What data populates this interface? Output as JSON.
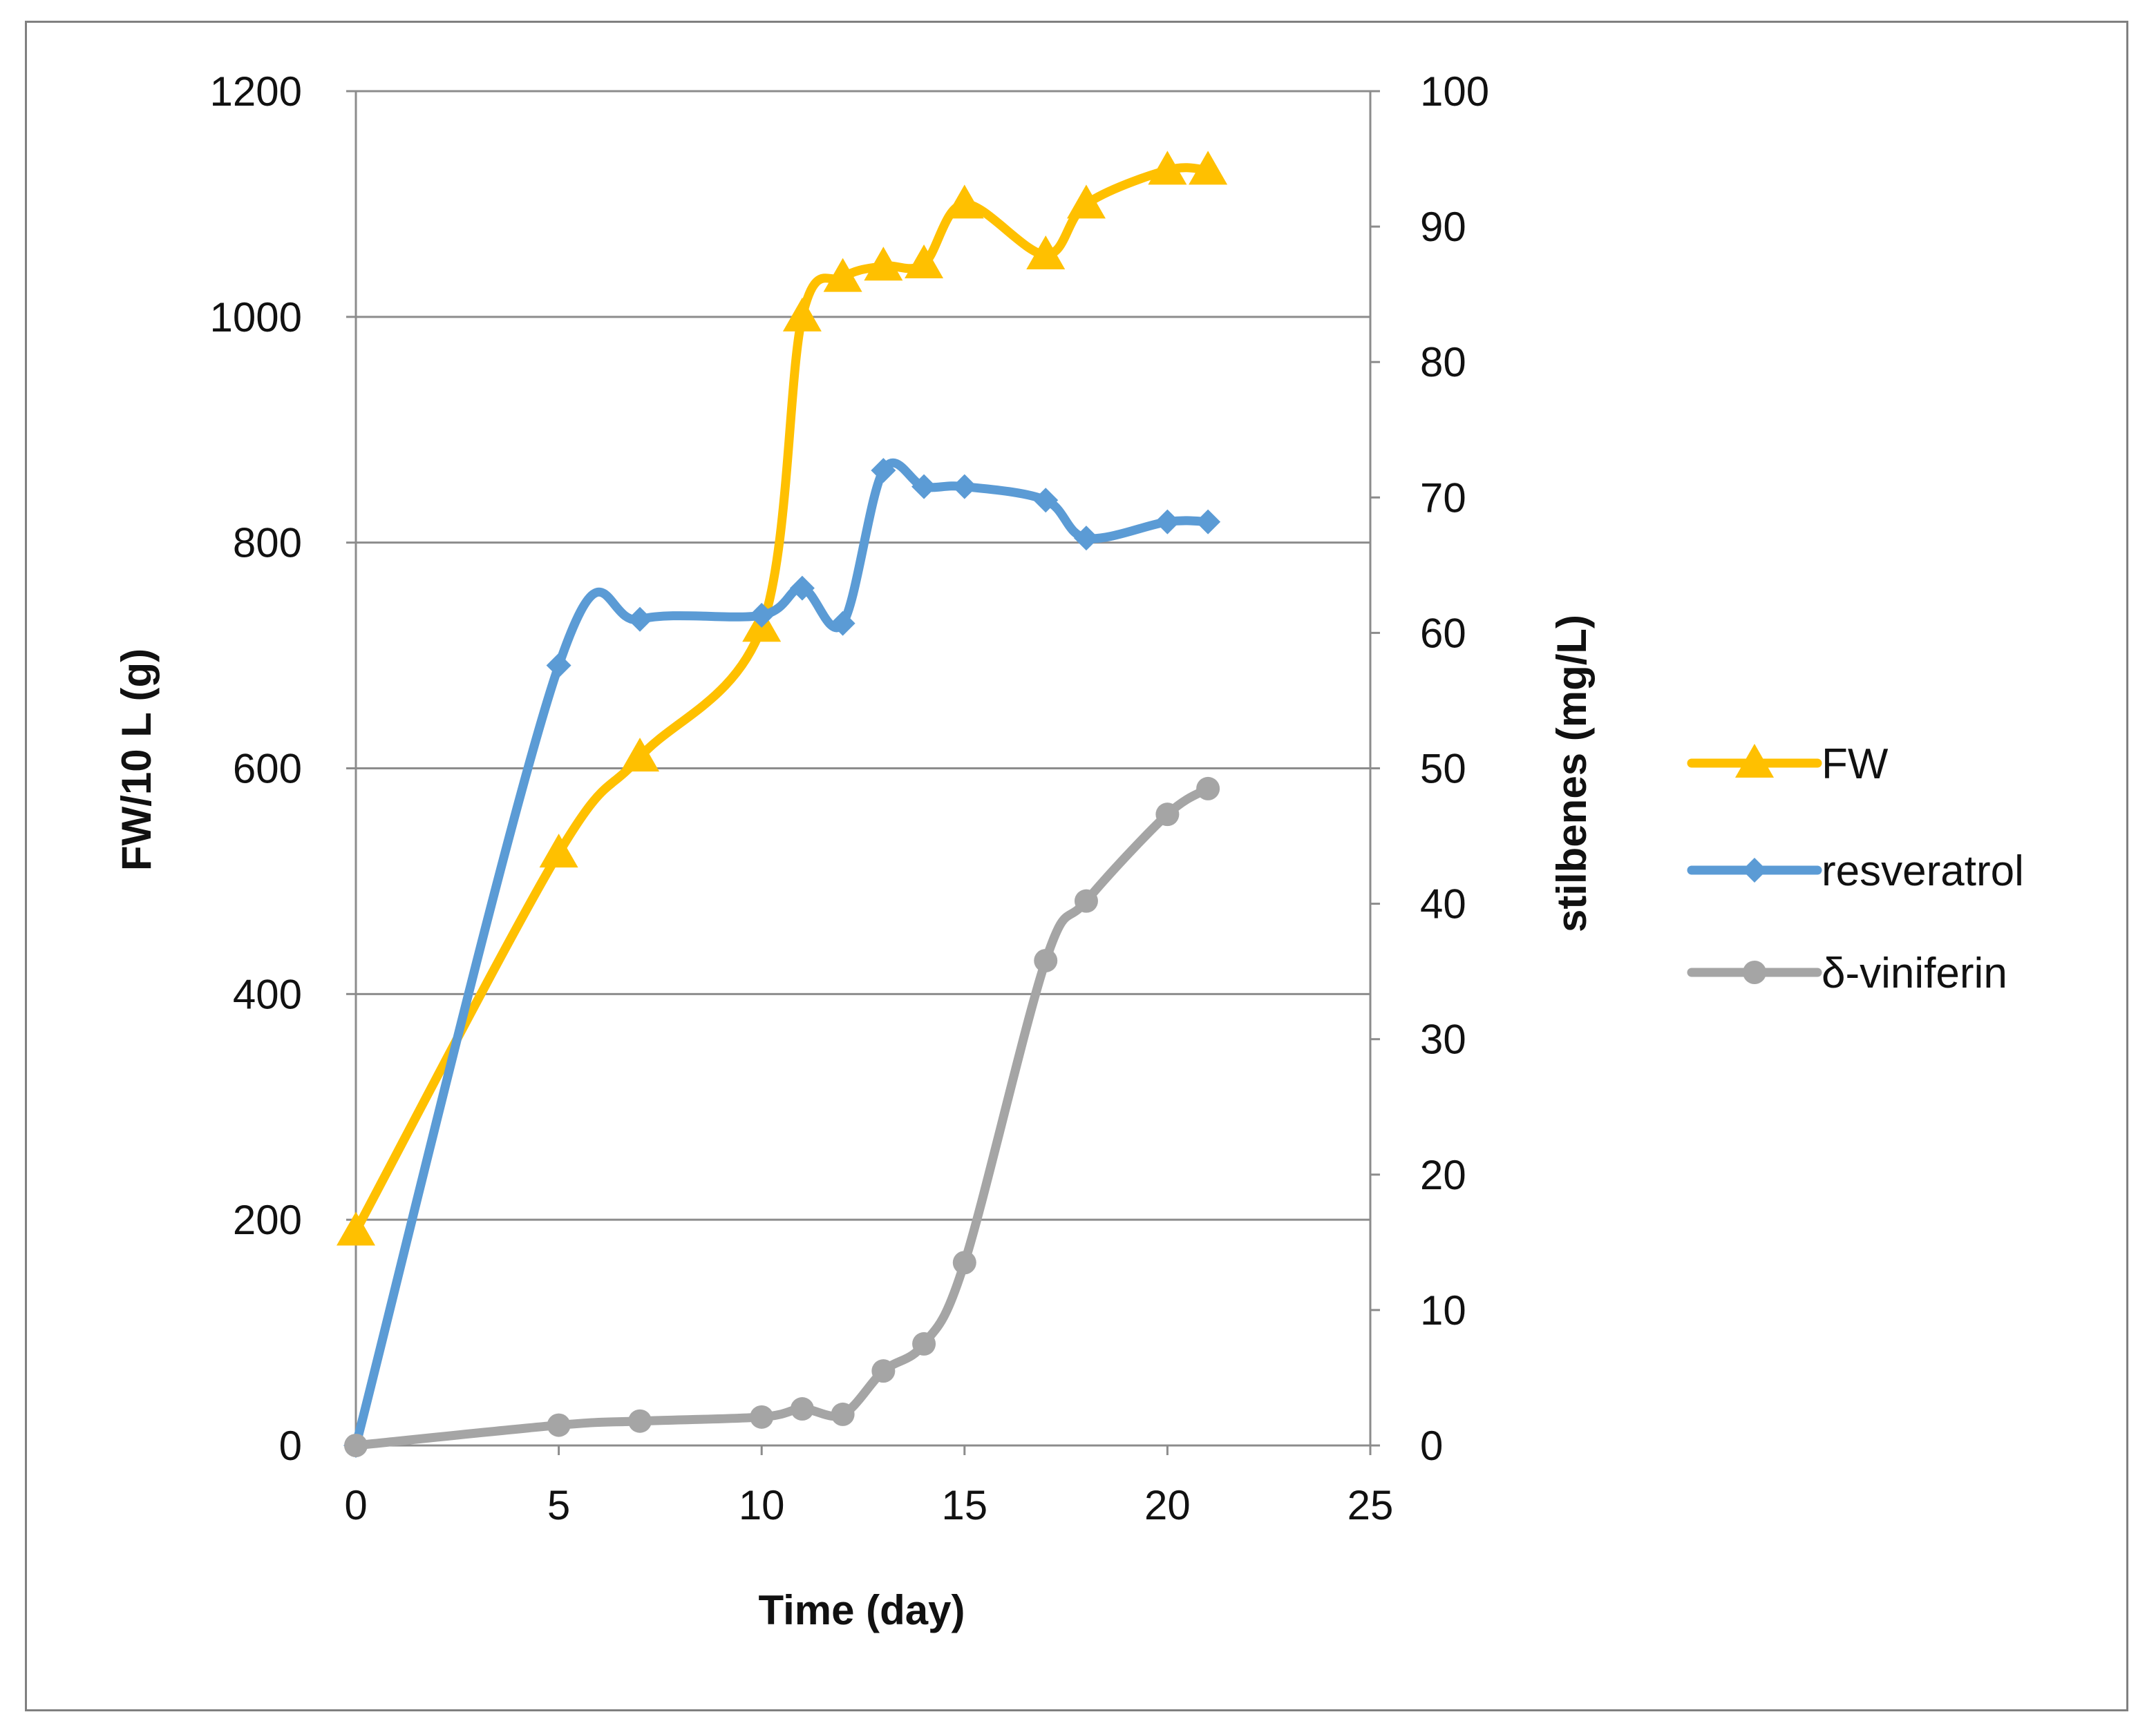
{
  "chart_data": {
    "type": "line",
    "title": "",
    "xlabel": "Time (day)",
    "ylabel": "FW/10 L (g)",
    "y2label": "stilbenes (mg/L)",
    "xlim": [
      0,
      25
    ],
    "ylim": [
      0,
      1200
    ],
    "y2lim": [
      0,
      100
    ],
    "xticks": [
      0,
      5,
      10,
      15,
      20,
      25
    ],
    "yticks": [
      0,
      200,
      400,
      600,
      800,
      1000,
      1200
    ],
    "y2ticks": [
      0,
      10,
      20,
      30,
      40,
      50,
      60,
      70,
      80,
      90,
      100
    ],
    "grid": true,
    "legend_position": "right",
    "series": [
      {
        "name": "FW",
        "axis": "left",
        "color": "#FFC000",
        "marker": "triangle",
        "x": [
          0,
          5,
          7,
          10,
          11,
          12,
          13,
          14,
          15,
          17,
          18,
          20,
          21
        ],
        "values": [
          190,
          525,
          610,
          725,
          1000,
          1035,
          1045,
          1047,
          1100,
          1055,
          1100,
          1130,
          1130
        ]
      },
      {
        "name": "resveratrol",
        "axis": "right",
        "color": "#5B9BD5",
        "marker": "diamond",
        "x": [
          0,
          5,
          7,
          10,
          11,
          12,
          13,
          14,
          15,
          17,
          18,
          20,
          21
        ],
        "values": [
          0,
          57.6,
          61,
          61.3,
          63.3,
          60.7,
          72,
          70.8,
          70.8,
          69.8,
          67,
          68.2,
          68.2
        ]
      },
      {
        "name": "δ-viniferin",
        "axis": "right",
        "color": "#A5A5A5",
        "marker": "circle",
        "x": [
          0,
          5,
          7,
          10,
          11,
          12,
          13,
          14,
          15,
          17,
          18,
          20,
          21
        ],
        "values": [
          0,
          1.5,
          1.8,
          2.1,
          2.7,
          2.3,
          5.5,
          7.5,
          13.5,
          35.8,
          40.2,
          46.6,
          48.5
        ]
      }
    ]
  }
}
